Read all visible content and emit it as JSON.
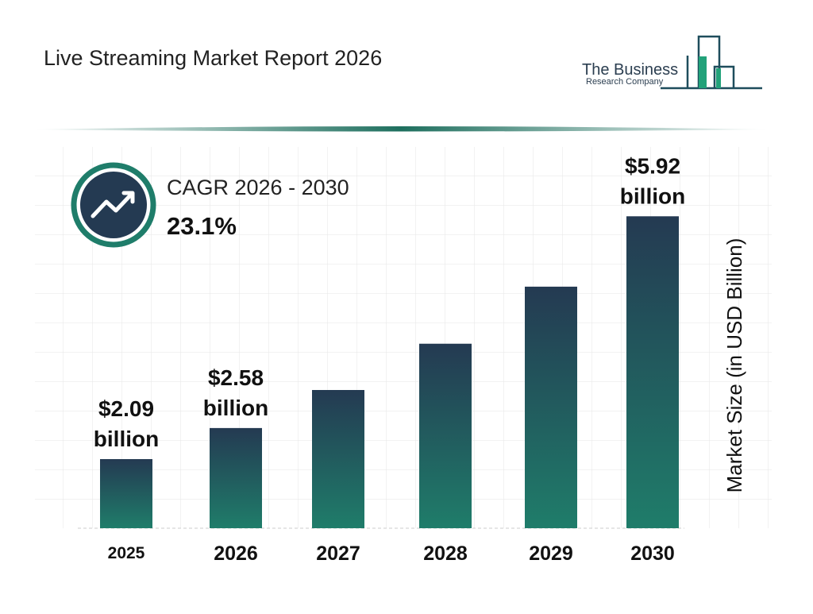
{
  "chart_data": {
    "type": "bar",
    "title": "Live Streaming Market Report 2026",
    "logo": {
      "line1": "The Business",
      "line2": "Research Company"
    },
    "cagr": {
      "label": "CAGR 2026 - 2030",
      "value": "23.1%"
    },
    "y_label": "Market Size (in USD Billion)",
    "categories": [
      "2025",
      "2026",
      "2027",
      "2028",
      "2029",
      "2030"
    ],
    "values": [
      2.09,
      2.58,
      3.18,
      3.91,
      4.81,
      5.92
    ],
    "value_labels": [
      "$2.09 billion",
      "$2.58 billion",
      null,
      null,
      null,
      "$5.92 billion"
    ],
    "color": [
      "#243a52",
      "#1f7d6a"
    ],
    "ylim": [
      1,
      6.5
    ]
  }
}
